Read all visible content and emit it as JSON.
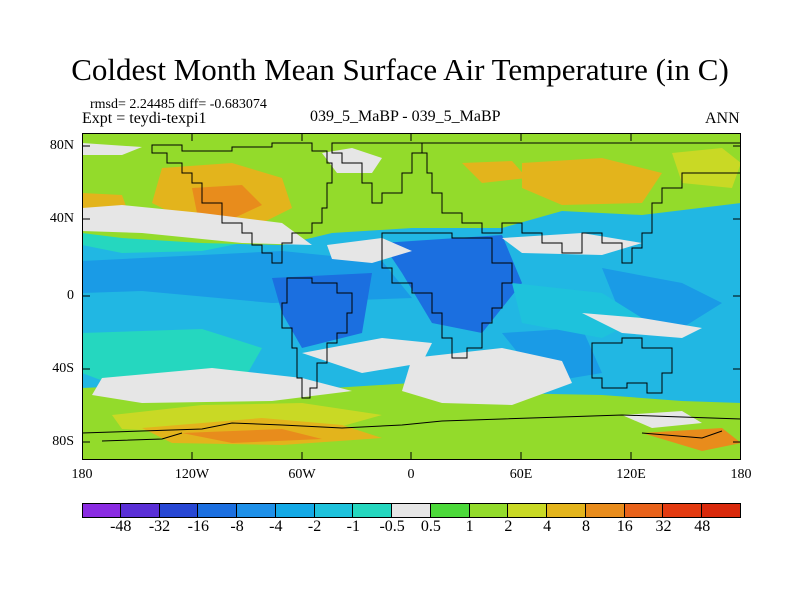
{
  "title": "Coldest Month Mean Surface Air Temperature (in C)",
  "stats": "rmsd= 2.24485 diff= -0.683074",
  "expt": "Expt = teydi-texpi1",
  "center_label": "039_5_MaBP - 039_5_MaBP",
  "season": "ANN",
  "y_ticks": [
    "80N",
    "40N",
    "0",
    "40S",
    "80S"
  ],
  "x_ticks": [
    "180",
    "120W",
    "60W",
    "0",
    "60E",
    "120E",
    "180"
  ],
  "colorbar": {
    "labels": [
      "-48",
      "-32",
      "-16",
      "-8",
      "-4",
      "-2",
      "-1",
      "-0.5",
      "0.5",
      "1",
      "2",
      "4",
      "8",
      "16",
      "32",
      "48"
    ],
    "colors": [
      "#8a2be2",
      "#5a2fd6",
      "#2747d4",
      "#1b6fe0",
      "#1e90e8",
      "#13a9e6",
      "#1ec2dc",
      "#25d7bf",
      "#e6e6e6",
      "#4cd93a",
      "#93db2b",
      "#c9d925",
      "#e3b41c",
      "#e88c1c",
      "#e8621a",
      "#e33a10",
      "#d9290b"
    ]
  },
  "map": {
    "background": "#21b7e3",
    "coast_color": "#000000"
  }
}
